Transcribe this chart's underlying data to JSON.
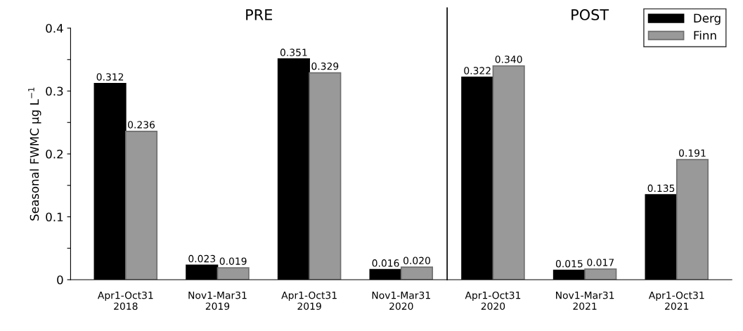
{
  "chart_data": {
    "type": "bar",
    "ylabel": "Seasonal FWMC µg L$^{−1}$",
    "categories": [
      "Apr1-Oct31\n2018",
      "Nov1-Mar31\n2019",
      "Apr1-Oct31\n2019",
      "Nov1-Mar31\n2020",
      "Apr1-Oct31\n2020",
      "Nov1-Mar31\n2021",
      "Apr1-Oct31\n2021"
    ],
    "series": [
      {
        "name": "Derg",
        "color": "#000000",
        "values": [
          0.312,
          0.023,
          0.351,
          0.016,
          0.322,
          0.015,
          0.135
        ],
        "value_labels": [
          "0.312",
          "0.023",
          "0.351",
          "0.016",
          "0.322",
          "0.015",
          "0.135"
        ]
      },
      {
        "name": "Finn",
        "color": "#999999",
        "values": [
          0.236,
          0.019,
          0.329,
          0.02,
          0.34,
          0.017,
          0.191
        ],
        "value_labels": [
          "0.236",
          "0.019",
          "0.329",
          "0.020",
          "0.340",
          "0.017",
          "0.191"
        ]
      }
    ],
    "ylim": [
      0,
      0.4
    ],
    "yticks": [
      0,
      {
        "value": 0.05,
        "label": null
      },
      0.1,
      {
        "value": 0.15,
        "label": null
      },
      0.2,
      {
        "value": 0.25,
        "label": null
      },
      0.3,
      {
        "value": 0.35,
        "label": null
      },
      0.4
    ],
    "annotations": [
      "PRE",
      "POST"
    ],
    "legend": "top right",
    "grid": false
  }
}
